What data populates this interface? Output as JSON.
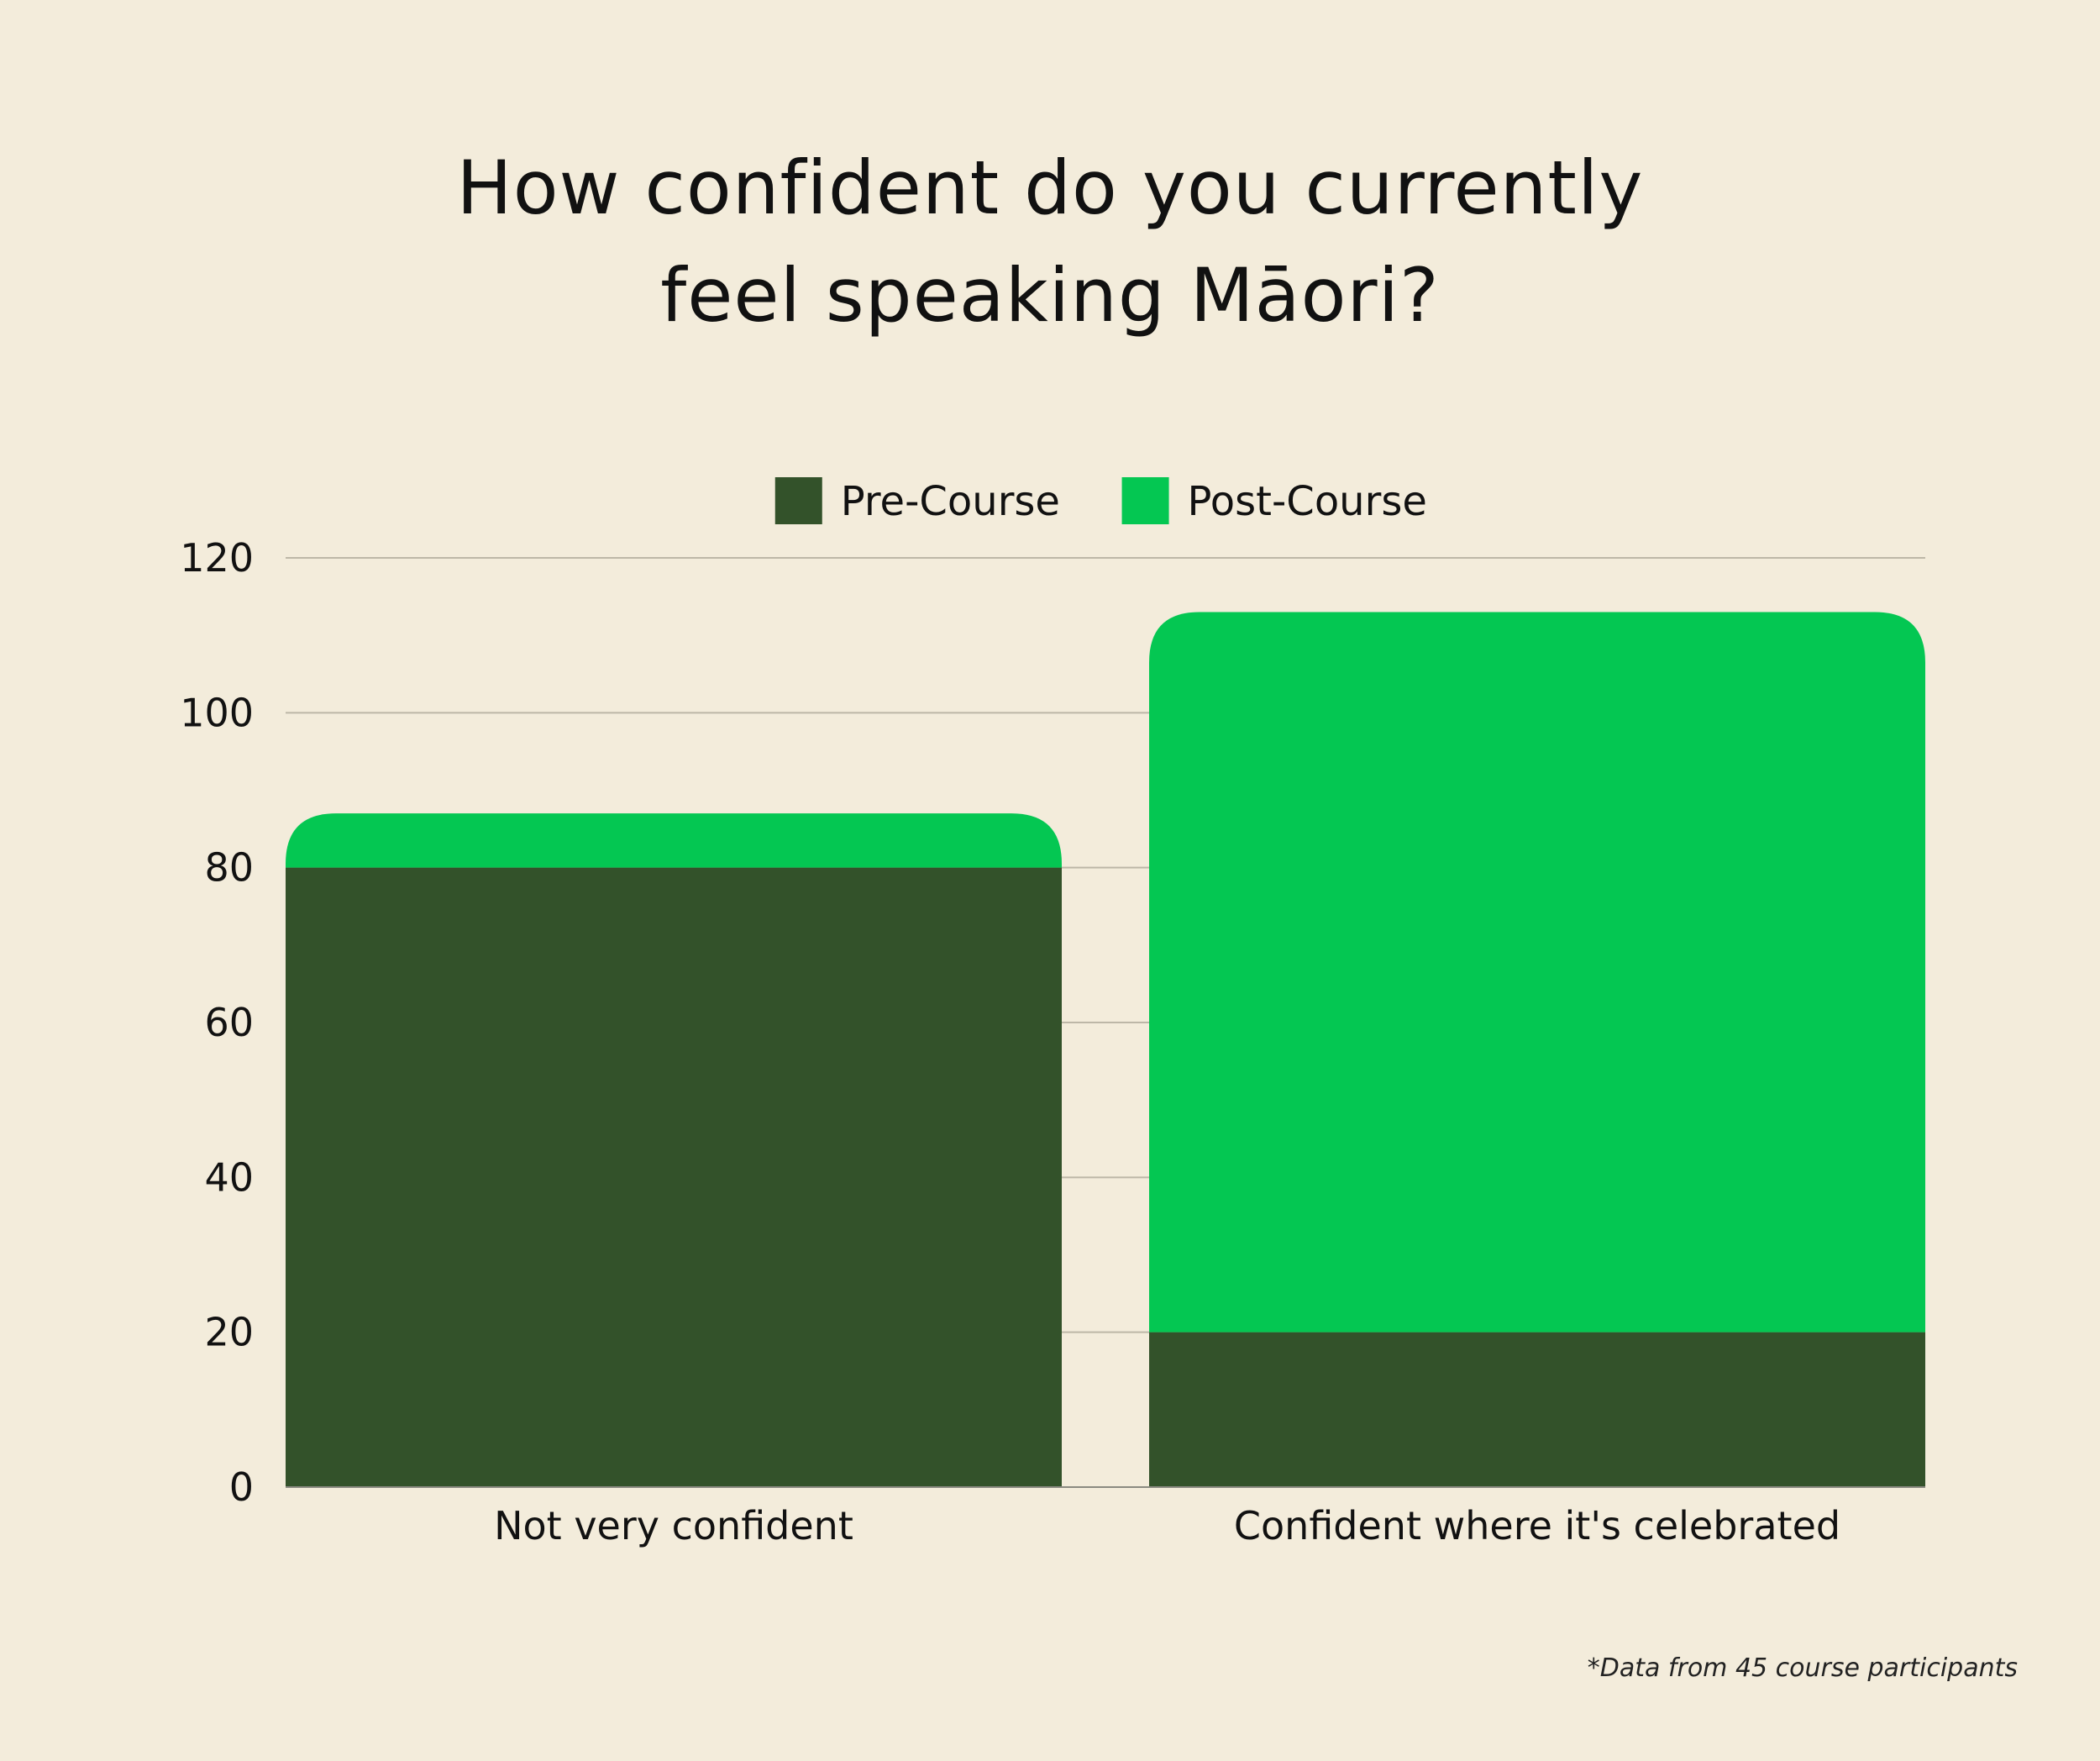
{
  "chart_data": {
    "type": "bar",
    "stacked": true,
    "title_lines": [
      "How confident do you currently",
      "feel speaking Māori?"
    ],
    "categories": [
      "Not very confident",
      "Confident where it's celebrated"
    ],
    "series": [
      {
        "name": "Pre-Course",
        "color": "#33522a",
        "values": [
          80,
          20
        ]
      },
      {
        "name": "Post-Course",
        "color": "#04c752",
        "values": [
          7,
          93
        ]
      }
    ],
    "ylim": [
      0,
      120
    ],
    "yticks": [
      "0",
      "20",
      "40",
      "60",
      "80",
      "100",
      "120"
    ],
    "grid": true,
    "legend_position": "top-center",
    "xlabel": "",
    "ylabel": ""
  },
  "footnote": "*Data from 45 course participants"
}
